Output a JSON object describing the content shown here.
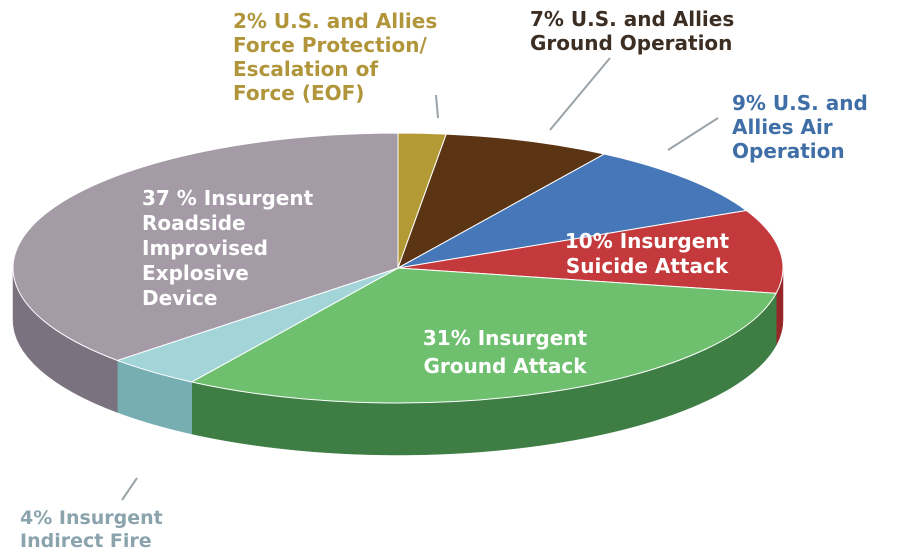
{
  "chart_data": {
    "type": "pie",
    "title": "",
    "slices": [
      {
        "label_lines": [
          "2% U.S. and Allies",
          "Force Protection/",
          "Escalation of",
          "Force (EOF)"
        ],
        "value": 2,
        "color": "#b39a35",
        "side_color": "#8a7424",
        "label_color": "#b0953a"
      },
      {
        "label_lines": [
          "7% U.S. and Allies",
          "Ground Operation"
        ],
        "value": 7,
        "color": "#5b3414",
        "side_color": "#40230c",
        "label_color": "#3c2e22"
      },
      {
        "label_lines": [
          "9% U.S. and",
          "Allies Air",
          "Operation"
        ],
        "value": 9,
        "color": "#4677b8",
        "side_color": "#2f568a",
        "label_color": "#3f6fa6"
      },
      {
        "label_lines": [
          "10% Insurgent",
          "Suicide Attack"
        ],
        "value": 10,
        "color": "#c4393b",
        "side_color": "#962628",
        "label_color": "#ffffff"
      },
      {
        "label_lines": [
          "31% Insurgent",
          "Ground Attack"
        ],
        "value": 31,
        "color": "#6ec06f",
        "side_color": "#3e7e45",
        "label_color": "#ffffff"
      },
      {
        "label_lines": [
          "4% Insurgent",
          "Indirect Fire"
        ],
        "value": 4,
        "color": "#a3d5d8",
        "side_color": "#76aeb2",
        "label_color": "#8aa3ad"
      },
      {
        "label_lines": [
          "37 % Insurgent",
          "Roadside",
          "Improvised",
          "Explosive",
          "Device"
        ],
        "value": 37,
        "color": "#a49ba7",
        "side_color": "#7b7280",
        "label_color": "#ffffff"
      }
    ]
  }
}
